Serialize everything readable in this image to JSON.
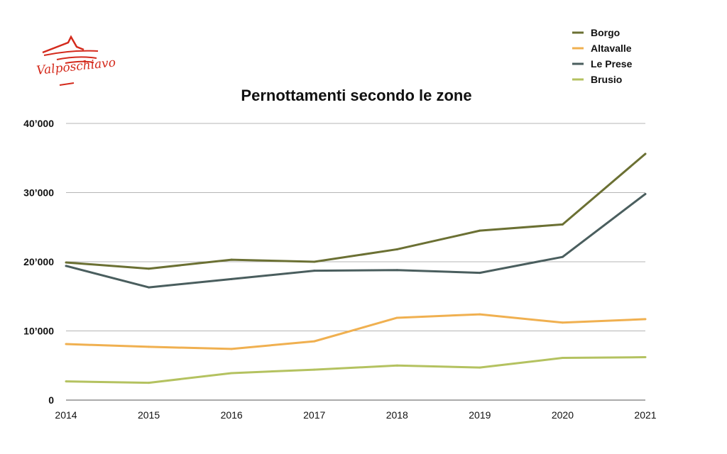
{
  "logo": {
    "text": "Valposchiavo",
    "color": "#d42a1c"
  },
  "chart_data": {
    "type": "line",
    "title": "Pernottamenti secondo le zone",
    "xlabel": "",
    "ylabel": "",
    "x": [
      "2014",
      "2015",
      "2016",
      "2017",
      "2018",
      "2019",
      "2020",
      "2021"
    ],
    "ylim": [
      0,
      40000
    ],
    "yticks": [
      0,
      10000,
      20000,
      30000,
      40000
    ],
    "ytick_labels": [
      "0",
      "10’000",
      "20’000",
      "30’000",
      "40’000"
    ],
    "grid": "horizontal",
    "legend": "top-right",
    "series": [
      {
        "name": "Borgo",
        "color": "#6b7033",
        "values": [
          19900,
          19000,
          20300,
          20000,
          21800,
          24500,
          25400,
          35600
        ]
      },
      {
        "name": "Altavalle",
        "color": "#f0b050",
        "values": [
          8100,
          7700,
          7400,
          8500,
          11900,
          12400,
          11200,
          11700
        ]
      },
      {
        "name": "Le Prese",
        "color": "#4a5e5e",
        "values": [
          19400,
          16300,
          17500,
          18700,
          18800,
          18400,
          20700,
          29800
        ]
      },
      {
        "name": "Brusio",
        "color": "#b4c260",
        "values": [
          2700,
          2500,
          3900,
          4400,
          5000,
          4700,
          6100,
          6200
        ]
      }
    ]
  }
}
